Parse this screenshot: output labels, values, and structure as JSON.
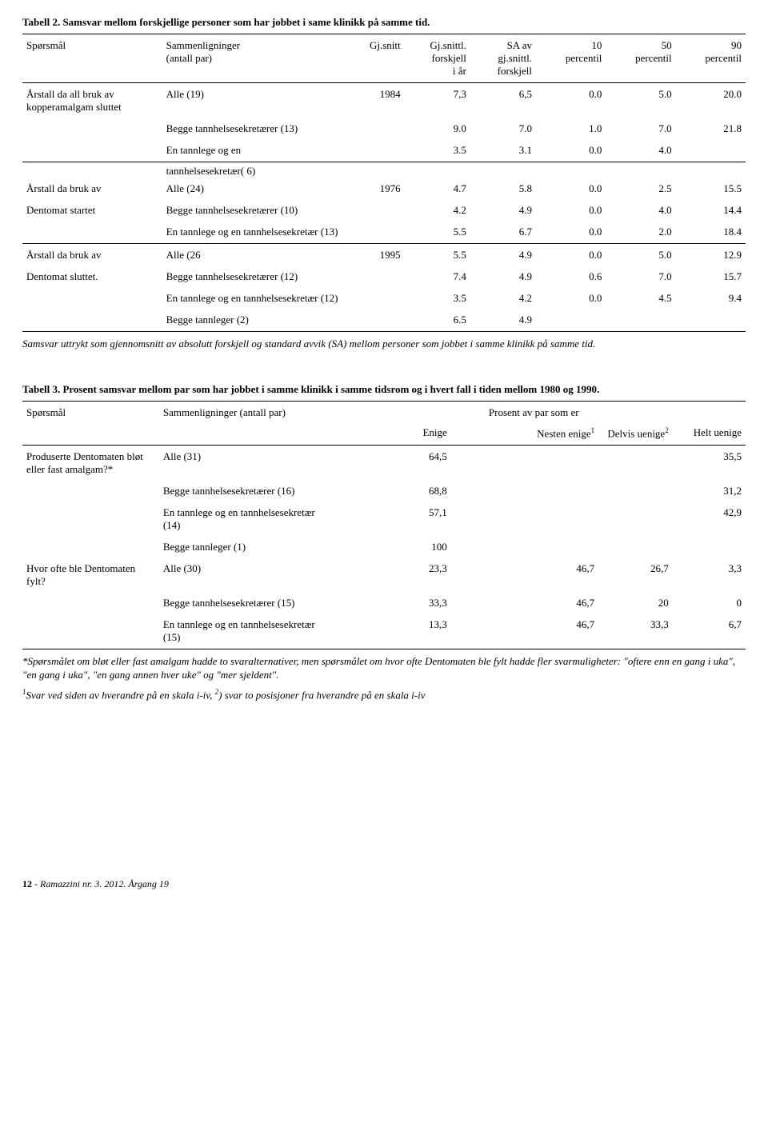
{
  "table2": {
    "title": "Tabell 2. Samsvar mellom forskjellige personer som har jobbet i same klinikk på samme tid.",
    "headers": {
      "c1": "Spørsmål",
      "c2_l1": "Sammenligninger",
      "c2_l2": "(antall par)",
      "c3": "Gj.snitt",
      "c4_l1": "Gj.snittl.",
      "c4_l2": "forskjell",
      "c4_l3": "i år",
      "c5_l1": "SA av",
      "c5_l2": "gj.snittl.",
      "c5_l3": "forskjell",
      "c6_l1": "10",
      "c6_l2": "percentil",
      "c7_l1": "50",
      "c7_l2": "percentil",
      "c8_l1": "90",
      "c8_l2": "percentil"
    },
    "rows": [
      {
        "q": "Årstall da all bruk av kopperamalgam sluttet",
        "s": "Alle  (19)",
        "gs": "1984",
        "gf": "7,3",
        "sa": "6,5",
        "p10": "0.0",
        "p50": "5.0",
        "p90": "20.0"
      },
      {
        "q": "",
        "s": "Begge tannhelsesekretærer (13)",
        "gs": "",
        "gf": "9.0",
        "sa": "7.0",
        "p10": "1.0",
        "p50": "7.0",
        "p90": "21.8"
      },
      {
        "q": "",
        "s": "En tannlege og en",
        "gs": "",
        "gf": "3.5",
        "sa": "3.1",
        "p10": "0.0",
        "p50": "4.0",
        "p90": ""
      },
      {
        "q": "",
        "s": "tannhelsesekretær( 6)",
        "gs": "",
        "gf": "",
        "sa": "",
        "p10": "",
        "p50": "",
        "p90": ""
      },
      {
        "q": "Årstall da bruk av",
        "s": "Alle (24)",
        "gs": "1976",
        "gf": "4.7",
        "sa": "5.8",
        "p10": "0.0",
        "p50": "2.5",
        "p90": "15.5"
      },
      {
        "q": "Dentomat  startet",
        "s": "Begge tannhelsesekretærer (10)",
        "gs": "",
        "gf": "4.2",
        "sa": "4.9",
        "p10": "0.0",
        "p50": "4.0",
        "p90": "14.4"
      },
      {
        "q": "",
        "s": "En tannlege og en tannhelsesekretær  (13)",
        "gs": "",
        "gf": "5.5",
        "sa": "6.7",
        "p10": "0.0",
        "p50": "2.0",
        "p90": "18.4"
      },
      {
        "q": "Årstall da bruk av",
        "s": "Alle  (26",
        "gs": "1995",
        "gf": "5.5",
        "sa": "4.9",
        "p10": "0.0",
        "p50": "5.0",
        "p90": "12.9"
      },
      {
        "q": "Dentomat sluttet.",
        "s": "Begge tannhelsesekretærer (12)",
        "gs": "",
        "gf": "7.4",
        "sa": "4.9",
        "p10": "0.6",
        "p50": "7.0",
        "p90": "15.7"
      },
      {
        "q": "",
        "s": "En tannlege og en tannhelsesekretær  (12)",
        "gs": "",
        "gf": "3.5",
        "sa": "4.2",
        "p10": "0.0",
        "p50": "4.5",
        "p90": "9.4"
      },
      {
        "q": "",
        "s": "Begge tannleger (2)",
        "gs": "",
        "gf": "6.5",
        "sa": "4.9",
        "p10": "",
        "p50": "",
        "p90": ""
      }
    ],
    "note": "Samsvar uttrykt som gjennomsnitt av absolutt forskjell og standard avvik (SA) mellom personer som jobbet i samme klinikk på samme tid."
  },
  "table3": {
    "title": "Tabell 3. Prosent samsvar mellom par som har jobbet i samme klinikk i samme tidsrom og i hvert fall i tiden mellom 1980 og 1990.",
    "headers": {
      "c1": "Spørsmål",
      "c2": "Sammenligninger (antall par)",
      "group": "Prosent av par som er",
      "sc1": "Enige",
      "sc2": "Nesten enige",
      "sc2_sup": "1",
      "sc3": "Delvis uenige",
      "sc3_sup": "2",
      "sc4": "Helt uenige"
    },
    "rows": [
      {
        "q": "Produserte Dentomaten bløt eller fast amalgam?*",
        "s": "Alle (31)",
        "e": "64,5",
        "ne": "",
        "du": "",
        "hu": "35,5"
      },
      {
        "q": "",
        "s": "Begge tannhelsesekretærer (16)",
        "e": "68,8",
        "ne": "",
        "du": "",
        "hu": "31,2"
      },
      {
        "q": "",
        "s": "En tannlege og en tannhelsesekretær    (14)",
        "e": "57,1",
        "ne": "",
        "du": "",
        "hu": "42,9"
      },
      {
        "q": "",
        "s": "Begge tannleger (1)",
        "e": "100",
        "ne": "",
        "du": "",
        "hu": ""
      },
      {
        "q": "Hvor ofte ble Dentomaten fylt?",
        "s": "Alle  (30)",
        "e": "23,3",
        "ne": "46,7",
        "du": "26,7",
        "hu": "3,3"
      },
      {
        "q": "",
        "s": "Begge tannhelsesekretærer (15)",
        "e": "33,3",
        "ne": "46,7",
        "du": "20",
        "hu": "0"
      },
      {
        "q": "",
        "s": "En tannlege og en tannhelsesekretær (15)",
        "e": "13,3",
        "ne": "46,7",
        "du": "33,3",
        "hu": "6,7"
      }
    ],
    "note1": "*Spørsmålet om bløt eller fast amalgam hadde to svaralternativer, men spørsmålet om hvor ofte Dentomaten ble fylt hadde fler svarmuligheter: \"oftere enn en gang i uka\", \"en gang i uka\", \"en gang annen hver uke\" og \"mer sjeldent\".",
    "note2_pre_sup": "1",
    "note2_text": "Svar ved siden av hverandre på en skala i-iv, ",
    "note2_sup2": "2",
    "note2_text2": ") svar to posisjoner fra hverandre på en skala i-iv"
  },
  "footer": {
    "pagenum": "12",
    "sep": " - ",
    "text": "Ramazzini nr. 3. 2012. Årgang 19"
  }
}
